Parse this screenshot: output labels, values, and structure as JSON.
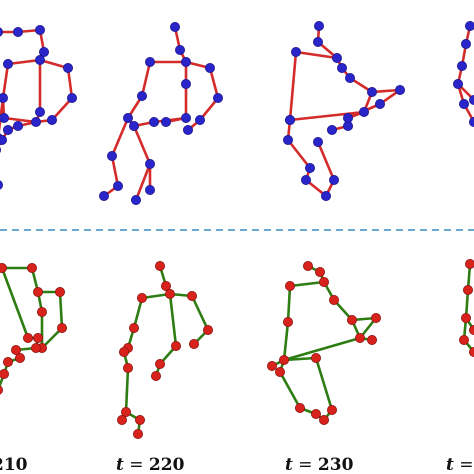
{
  "colors": {
    "top_bone": "#d42b2b",
    "top_joint": "#2a25c8",
    "bottom_bone": "#2e7d12",
    "bottom_joint": "#d8231d",
    "divider": "#6aa8d2"
  },
  "labels": [
    {
      "var": "",
      "eq": "",
      "value": "210"
    },
    {
      "var": "t",
      "eq": " = ",
      "value": "220"
    },
    {
      "var": "t",
      "eq": " = ",
      "value": "230"
    },
    {
      "var": "t",
      "eq": " =",
      "value": ""
    }
  ]
}
